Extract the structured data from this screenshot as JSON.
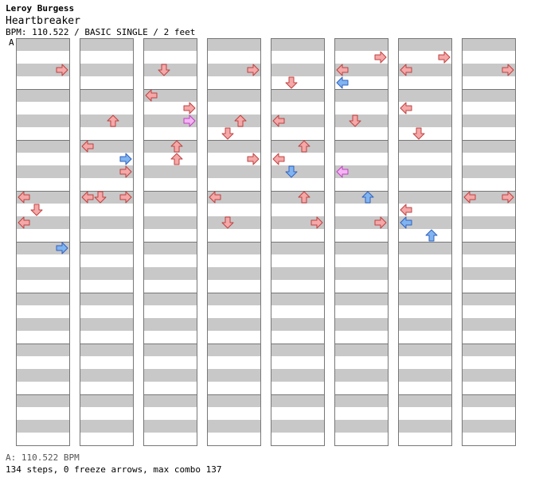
{
  "header": {
    "artist": "Leroy Burgess",
    "title": "Heartbreaker",
    "info": "BPM: 110.522 / BASIC SINGLE / 2 feet",
    "bpm_marker": "A"
  },
  "footer": {
    "bpm_legend": "A: 110.522 BPM",
    "stats": "134 steps, 0 freeze arrows, max combo 137"
  },
  "colors": {
    "quarter": "#f4a8a8",
    "eighth": "#80b4f0",
    "sixteenth": "#f4b4f4",
    "stroke": "#c04040",
    "band": "#c8c8c8"
  },
  "chart": {
    "lanes": [
      "left",
      "down",
      "up",
      "right"
    ],
    "beats_per_measure": 4,
    "measures_per_column": 8,
    "notes": [
      [
        0,
        0.5,
        "right",
        "q"
      ],
      [
        0,
        3.0,
        "left",
        "q"
      ],
      [
        0,
        3.25,
        "down",
        "q"
      ],
      [
        0,
        3.5,
        "left",
        "q"
      ],
      [
        0,
        4.0,
        "right",
        "e"
      ],
      [
        1,
        3.0,
        "down",
        "q"
      ],
      [
        1,
        2.0,
        "left",
        "q"
      ],
      [
        1,
        1.5,
        "up",
        "q"
      ],
      [
        1,
        2.25,
        "right",
        "e"
      ],
      [
        1,
        2.5,
        "right",
        "q"
      ],
      [
        1,
        3.0,
        "left",
        "q"
      ],
      [
        1,
        3.0,
        "right",
        "q"
      ],
      [
        2,
        0.5,
        "down",
        "q"
      ],
      [
        2,
        1.0,
        "left",
        "q"
      ],
      [
        2,
        1.25,
        "right",
        "q"
      ],
      [
        2,
        1.5,
        "right",
        "s"
      ],
      [
        2,
        2.0,
        "up",
        "q"
      ],
      [
        2,
        2.25,
        "up",
        "q"
      ],
      [
        3,
        0.5,
        "right",
        "q"
      ],
      [
        3,
        1.5,
        "up",
        "q"
      ],
      [
        3,
        3.0,
        "left",
        "q"
      ],
      [
        3,
        3.5,
        "down",
        "q"
      ],
      [
        3,
        1.75,
        "down",
        "q"
      ],
      [
        3,
        2.25,
        "right",
        "q"
      ],
      [
        4,
        0.75,
        "down",
        "q"
      ],
      [
        4,
        1.5,
        "left",
        "q"
      ],
      [
        4,
        2.0,
        "up",
        "q"
      ],
      [
        4,
        2.5,
        "down",
        "e"
      ],
      [
        4,
        3.0,
        "up",
        "q"
      ],
      [
        4,
        3.5,
        "right",
        "q"
      ],
      [
        4,
        2.25,
        "left",
        "q"
      ],
      [
        5,
        0.5,
        "left",
        "q"
      ],
      [
        5,
        0.75,
        "left",
        "e"
      ],
      [
        5,
        0.25,
        "right",
        "q"
      ],
      [
        5,
        1.5,
        "down",
        "q"
      ],
      [
        5,
        3.0,
        "up",
        "e"
      ],
      [
        5,
        2.5,
        "left",
        "s"
      ],
      [
        5,
        3.5,
        "right",
        "q"
      ],
      [
        6,
        0.5,
        "left",
        "q"
      ],
      [
        6,
        0.25,
        "right",
        "q"
      ],
      [
        6,
        1.25,
        "left",
        "q"
      ],
      [
        6,
        1.75,
        "down",
        "q"
      ],
      [
        6,
        3.25,
        "left",
        "q"
      ],
      [
        6,
        3.5,
        "left",
        "e"
      ],
      [
        6,
        3.75,
        "up",
        "e"
      ],
      [
        7,
        0.5,
        "right",
        "q"
      ],
      [
        7,
        3.0,
        "left",
        "q"
      ],
      [
        7,
        3.0,
        "right",
        "q"
      ]
    ]
  }
}
